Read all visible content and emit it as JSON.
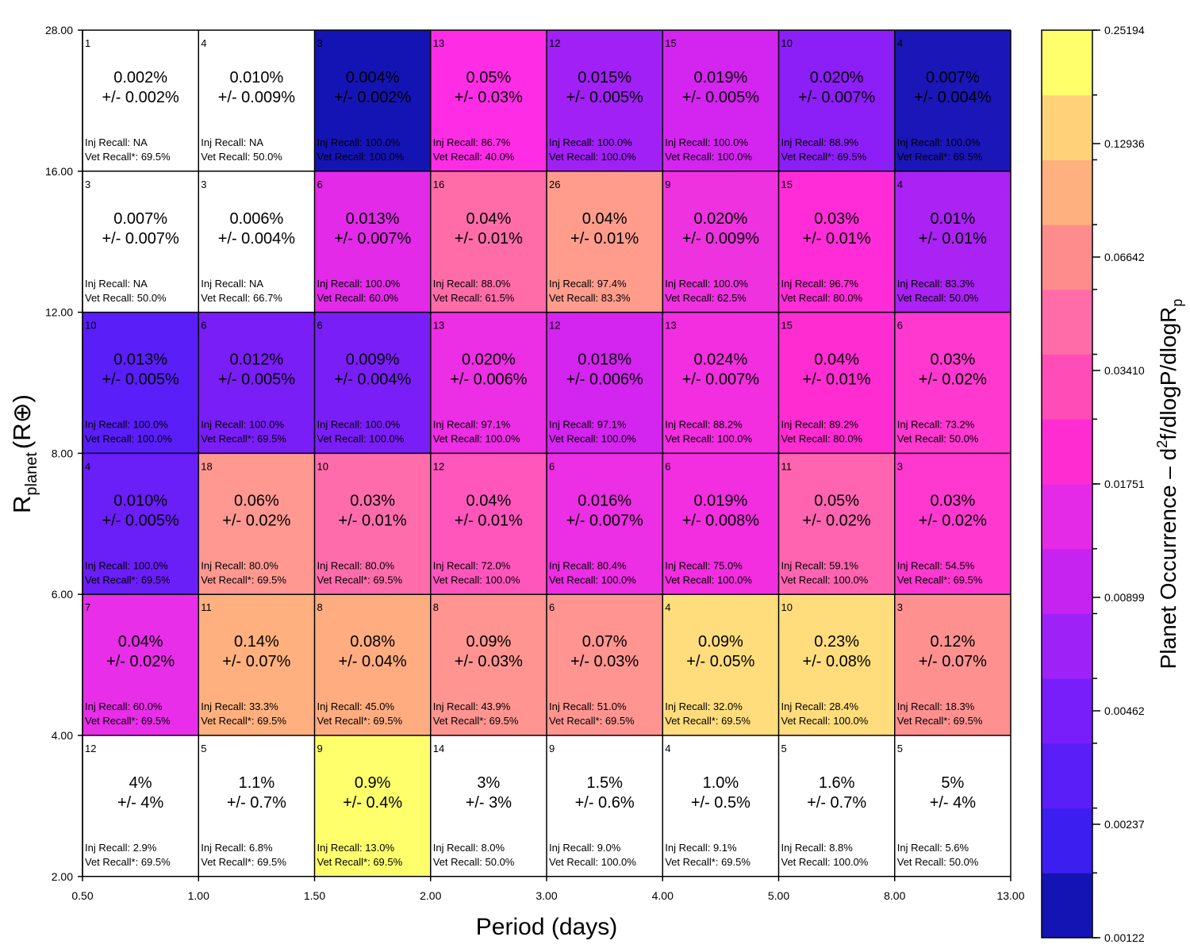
{
  "chart_data": {
    "type": "heatmap",
    "title": "",
    "xlabel": "Period (days)",
    "ylabel_main": "R",
    "ylabel_sub": "planet",
    "ylabel_unit": "(R⊕)",
    "colorbar_label_main": "Planet Occurrence – d",
    "colorbar_label_sup": "2",
    "colorbar_label_mid": "f/dlogP/dlogR",
    "colorbar_label_sub": "p",
    "x_ticks": [
      "0.50",
      "1.00",
      "1.50",
      "2.00",
      "3.00",
      "4.00",
      "5.00",
      "8.00",
      "13.00"
    ],
    "y_ticks": [
      "2.00",
      "4.00",
      "6.00",
      "8.00",
      "12.00",
      "16.00",
      "28.00"
    ],
    "colorbar_ticks": [
      "0.25194",
      "0.12936",
      "0.06642",
      "0.03410",
      "0.01751",
      "0.00899",
      "0.00462",
      "0.00237",
      "0.00122"
    ],
    "colorbar_colors": [
      "#1414b4",
      "#3c1ef0",
      "#5a1ef8",
      "#781efa",
      "#9e22f8",
      "#c622f0",
      "#e42ae6",
      "#ff2cd2",
      "#ff4cb6",
      "#ff6ca8",
      "#ff8c8c",
      "#ffb07e",
      "#ffd27a",
      "#ffff6c"
    ],
    "rows": [
      {
        "y_range": "16.00-28.00",
        "cells": [
          {
            "n": "1",
            "rate": "0.002%",
            "err": "+/- 0.002%",
            "inj": "Inj Recall: NA",
            "vet": "Vet Recall*: 69.5%",
            "color": "#ffffff",
            "light": false
          },
          {
            "n": "4",
            "rate": "0.010%",
            "err": "+/- 0.009%",
            "inj": "Inj Recall: NA",
            "vet": "Vet Recall: 50.0%",
            "color": "#ffffff",
            "light": false
          },
          {
            "n": "3",
            "rate": "0.004%",
            "err": "+/- 0.002%",
            "inj": "Inj Recall: 100.0%",
            "vet": "Vet Recall: 100.0%",
            "color": "#1414b4",
            "light": false
          },
          {
            "n": "13",
            "rate": "0.05%",
            "err": "+/- 0.03%",
            "inj": "Inj Recall: 86.7%",
            "vet": "Vet Recall: 40.0%",
            "color": "#ff2ce6",
            "light": false
          },
          {
            "n": "12",
            "rate": "0.015%",
            "err": "+/- 0.005%",
            "inj": "Inj Recall: 100.0%",
            "vet": "Vet Recall: 100.0%",
            "color": "#a020f6",
            "light": false
          },
          {
            "n": "15",
            "rate": "0.019%",
            "err": "+/- 0.005%",
            "inj": "Inj Recall: 100.0%",
            "vet": "Vet Recall: 100.0%",
            "color": "#d424f0",
            "light": false
          },
          {
            "n": "10",
            "rate": "0.020%",
            "err": "+/- 0.007%",
            "inj": "Inj Recall: 88.9%",
            "vet": "Vet Recall*: 69.5%",
            "color": "#8c1ef8",
            "light": false
          },
          {
            "n": "4",
            "rate": "0.007%",
            "err": "+/- 0.004%",
            "inj": "Inj Recall: 100.0%",
            "vet": "Vet Recall*: 69.5%",
            "color": "#1a16b8",
            "light": false
          }
        ]
      },
      {
        "y_range": "12.00-16.00",
        "cells": [
          {
            "n": "3",
            "rate": "0.007%",
            "err": "+/- 0.007%",
            "inj": "Inj Recall: NA",
            "vet": "Vet Recall: 50.0%",
            "color": "#ffffff",
            "light": false
          },
          {
            "n": "3",
            "rate": "0.006%",
            "err": "+/- 0.004%",
            "inj": "Inj Recall: NA",
            "vet": "Vet Recall: 66.7%",
            "color": "#ffffff",
            "light": false
          },
          {
            "n": "6",
            "rate": "0.013%",
            "err": "+/- 0.007%",
            "inj": "Inj Recall: 100.0%",
            "vet": "Vet Recall: 60.0%",
            "color": "#e22ae8",
            "light": false
          },
          {
            "n": "16",
            "rate": "0.04%",
            "err": "+/- 0.01%",
            "inj": "Inj Recall: 88.0%",
            "vet": "Vet Recall: 61.5%",
            "color": "#ff6ca8",
            "light": false
          },
          {
            "n": "26",
            "rate": "0.04%",
            "err": "+/- 0.01%",
            "inj": "Inj Recall: 97.4%",
            "vet": "Vet Recall: 83.3%",
            "color": "#ff9c8c",
            "light": false
          },
          {
            "n": "9",
            "rate": "0.020%",
            "err": "+/- 0.009%",
            "inj": "Inj Recall: 100.0%",
            "vet": "Vet Recall: 62.5%",
            "color": "#ee32e0",
            "light": false
          },
          {
            "n": "15",
            "rate": "0.03%",
            "err": "+/- 0.01%",
            "inj": "Inj Recall: 96.7%",
            "vet": "Vet Recall: 80.0%",
            "color": "#ff2cd8",
            "light": false
          },
          {
            "n": "4",
            "rate": "0.01%",
            "err": "+/- 0.01%",
            "inj": "Inj Recall: 83.3%",
            "vet": "Vet Recall: 50.0%",
            "color": "#aa22f4",
            "light": false
          }
        ]
      },
      {
        "y_range": "8.00-12.00",
        "cells": [
          {
            "n": "10",
            "rate": "0.013%",
            "err": "+/- 0.005%",
            "inj": "Inj Recall: 100.0%",
            "vet": "Vet Recall: 100.0%",
            "color": "#5a1ef8",
            "light": false
          },
          {
            "n": "6",
            "rate": "0.012%",
            "err": "+/- 0.005%",
            "inj": "Inj Recall: 100.0%",
            "vet": "Vet Recall*: 69.5%",
            "color": "#7a1ef8",
            "light": false
          },
          {
            "n": "6",
            "rate": "0.009%",
            "err": "+/- 0.004%",
            "inj": "Inj Recall: 100.0%",
            "vet": "Vet Recall: 100.0%",
            "color": "#7a1ef8",
            "light": false
          },
          {
            "n": "13",
            "rate": "0.020%",
            "err": "+/- 0.006%",
            "inj": "Inj Recall: 97.1%",
            "vet": "Vet Recall: 100.0%",
            "color": "#ec2ee4",
            "light": false
          },
          {
            "n": "12",
            "rate": "0.018%",
            "err": "+/- 0.006%",
            "inj": "Inj Recall: 97.1%",
            "vet": "Vet Recall: 100.0%",
            "color": "#d424f0",
            "light": false
          },
          {
            "n": "13",
            "rate": "0.024%",
            "err": "+/- 0.007%",
            "inj": "Inj Recall: 88.2%",
            "vet": "Vet Recall: 100.0%",
            "color": "#f22ee0",
            "light": false
          },
          {
            "n": "15",
            "rate": "0.04%",
            "err": "+/- 0.01%",
            "inj": "Inj Recall: 89.2%",
            "vet": "Vet Recall: 80.0%",
            "color": "#ff2cd2",
            "light": false
          },
          {
            "n": "6",
            "rate": "0.03%",
            "err": "+/- 0.02%",
            "inj": "Inj Recall: 73.2%",
            "vet": "Vet Recall: 50.0%",
            "color": "#ff38d0",
            "light": false
          }
        ]
      },
      {
        "y_range": "6.00-8.00",
        "cells": [
          {
            "n": "4",
            "rate": "0.010%",
            "err": "+/- 0.005%",
            "inj": "Inj Recall: 100.0%",
            "vet": "Vet Recall*: 69.5%",
            "color": "#6a1ef8",
            "light": false
          },
          {
            "n": "18",
            "rate": "0.06%",
            "err": "+/- 0.02%",
            "inj": "Inj Recall: 80.0%",
            "vet": "Vet Recall*: 69.5%",
            "color": "#ff9890",
            "light": false
          },
          {
            "n": "10",
            "rate": "0.03%",
            "err": "+/- 0.01%",
            "inj": "Inj Recall: 80.0%",
            "vet": "Vet Recall*: 69.5%",
            "color": "#ff6cac",
            "light": false
          },
          {
            "n": "12",
            "rate": "0.04%",
            "err": "+/- 0.01%",
            "inj": "Inj Recall: 72.0%",
            "vet": "Vet Recall: 100.0%",
            "color": "#ff56bc",
            "light": false
          },
          {
            "n": "6",
            "rate": "0.016%",
            "err": "+/- 0.007%",
            "inj": "Inj Recall: 80.4%",
            "vet": "Vet Recall: 100.0%",
            "color": "#ec2ee4",
            "light": false
          },
          {
            "n": "6",
            "rate": "0.019%",
            "err": "+/- 0.008%",
            "inj": "Inj Recall: 75.0%",
            "vet": "Vet Recall: 100.0%",
            "color": "#f22ee0",
            "light": false
          },
          {
            "n": "11",
            "rate": "0.05%",
            "err": "+/- 0.02%",
            "inj": "Inj Recall: 59.1%",
            "vet": "Vet Recall: 100.0%",
            "color": "#ff64b0",
            "light": false
          },
          {
            "n": "3",
            "rate": "0.03%",
            "err": "+/- 0.02%",
            "inj": "Inj Recall: 54.5%",
            "vet": "Vet Recall*: 69.5%",
            "color": "#ff38d0",
            "light": false
          }
        ]
      },
      {
        "y_range": "4.00-6.00",
        "cells": [
          {
            "n": "7",
            "rate": "0.04%",
            "err": "+/- 0.02%",
            "inj": "Inj Recall: 60.0%",
            "vet": "Vet Recall*: 69.5%",
            "color": "#e82ee8",
            "light": false
          },
          {
            "n": "11",
            "rate": "0.14%",
            "err": "+/- 0.07%",
            "inj": "Inj Recall: 33.3%",
            "vet": "Vet Recall*: 69.5%",
            "color": "#ffb07e",
            "light": false
          },
          {
            "n": "8",
            "rate": "0.08%",
            "err": "+/- 0.04%",
            "inj": "Inj Recall: 45.0%",
            "vet": "Vet Recall*: 69.5%",
            "color": "#ffac80",
            "light": false
          },
          {
            "n": "8",
            "rate": "0.09%",
            "err": "+/- 0.03%",
            "inj": "Inj Recall: 43.9%",
            "vet": "Vet Recall*: 69.5%",
            "color": "#ff9490",
            "light": false
          },
          {
            "n": "6",
            "rate": "0.07%",
            "err": "+/- 0.03%",
            "inj": "Inj Recall: 51.0%",
            "vet": "Vet Recall*: 69.5%",
            "color": "#ff9490",
            "light": false
          },
          {
            "n": "4",
            "rate": "0.09%",
            "err": "+/- 0.05%",
            "inj": "Inj Recall: 32.0%",
            "vet": "Vet Recall*: 69.5%",
            "color": "#ffdc7c",
            "light": false
          },
          {
            "n": "10",
            "rate": "0.23%",
            "err": "+/- 0.08%",
            "inj": "Inj Recall: 28.4%",
            "vet": "Vet Recall: 100.0%",
            "color": "#ffdc7c",
            "light": false
          },
          {
            "n": "3",
            "rate": "0.12%",
            "err": "+/- 0.07%",
            "inj": "Inj Recall: 18.3%",
            "vet": "Vet Recall*: 69.5%",
            "color": "#ff9090",
            "light": false
          }
        ]
      },
      {
        "y_range": "2.00-4.00",
        "cells": [
          {
            "n": "12",
            "rate": "4%",
            "err": "+/-  4%",
            "inj": "Inj Recall: 2.9%",
            "vet": "Vet Recall*: 69.5%",
            "color": "#ffffff",
            "light": false
          },
          {
            "n": "5",
            "rate": "1.1%",
            "err": "+/- 0.7%",
            "inj": "Inj Recall: 6.8%",
            "vet": "Vet Recall*: 69.5%",
            "color": "#ffffff",
            "light": false
          },
          {
            "n": "9",
            "rate": "0.9%",
            "err": "+/- 0.4%",
            "inj": "Inj Recall: 13.0%",
            "vet": "Vet Recall*: 69.5%",
            "color": "#ffff6c",
            "light": false
          },
          {
            "n": "14",
            "rate": "3%",
            "err": "+/-  3%",
            "inj": "Inj Recall: 8.0%",
            "vet": "Vet Recall: 50.0%",
            "color": "#ffffff",
            "light": false
          },
          {
            "n": "9",
            "rate": "1.5%",
            "err": "+/- 0.6%",
            "inj": "Inj Recall: 9.0%",
            "vet": "Vet Recall: 100.0%",
            "color": "#ffffff",
            "light": false
          },
          {
            "n": "4",
            "rate": "1.0%",
            "err": "+/- 0.5%",
            "inj": "Inj Recall: 9.1%",
            "vet": "Vet Recall*: 69.5%",
            "color": "#ffffff",
            "light": false
          },
          {
            "n": "5",
            "rate": "1.6%",
            "err": "+/- 0.7%",
            "inj": "Inj Recall: 8.8%",
            "vet": "Vet Recall: 100.0%",
            "color": "#ffffff",
            "light": false
          },
          {
            "n": "5",
            "rate": "5%",
            "err": "+/-  4%",
            "inj": "Inj Recall: 5.6%",
            "vet": "Vet Recall: 50.0%",
            "color": "#ffffff",
            "light": false
          }
        ]
      }
    ]
  }
}
